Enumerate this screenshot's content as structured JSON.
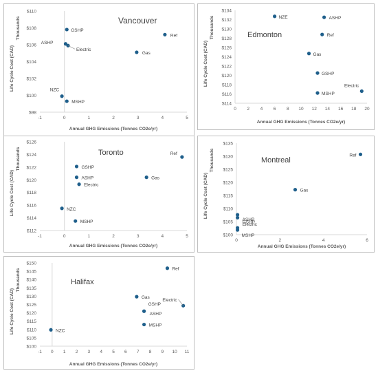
{
  "chart_data": [
    {
      "type": "scatter",
      "title": "Vancouver",
      "xlabel": "Annual GHG Emissions (Tonnes CO2e/yr)",
      "ylabel": "Life Cycle Cost (CAD)",
      "yunit": "Thousands",
      "xlim": [
        -1,
        5
      ],
      "ylim": [
        98,
        110
      ],
      "xticks": [
        -1,
        0,
        1,
        2,
        3,
        4,
        5
      ],
      "yticks": [
        98,
        100,
        102,
        104,
        106,
        108,
        110
      ],
      "xtick_labels": [
        "-1",
        "0",
        "1",
        "2",
        "3",
        "4",
        "5"
      ],
      "ytick_labels": [
        "$98",
        "$100",
        "$102",
        "$104",
        "$106",
        "$108",
        "$110"
      ],
      "grid": false,
      "points": [
        {
          "label": "GSHP",
          "x": 0.1,
          "y": 107.8
        },
        {
          "label": "ASHP",
          "x": 0.05,
          "y": 106.1
        },
        {
          "label": "Electric",
          "x": 0.15,
          "y": 105.9
        },
        {
          "label": "Ref",
          "x": 4.1,
          "y": 107.2
        },
        {
          "label": "Gas",
          "x": 2.95,
          "y": 105.1
        },
        {
          "label": "NZC",
          "x": -0.1,
          "y": 99.9
        },
        {
          "label": "MSHP",
          "x": 0.1,
          "y": 99.3
        }
      ]
    },
    {
      "type": "scatter",
      "title": "Edmonton",
      "xlabel": "Annual GHG Emissions (Tonnes CO2e/yr)",
      "ylabel": "Life Cycle Cost (CAD)",
      "yunit": "Thousands",
      "xlim": [
        0,
        20
      ],
      "ylim": [
        114,
        134
      ],
      "xticks": [
        0,
        2,
        4,
        6,
        8,
        10,
        12,
        14,
        16,
        18,
        20
      ],
      "yticks": [
        114,
        116,
        118,
        120,
        122,
        124,
        126,
        128,
        130,
        132,
        134
      ],
      "xtick_labels": [
        "0",
        "2",
        "4",
        "6",
        "8",
        "10",
        "12",
        "14",
        "16",
        "18",
        "20"
      ],
      "ytick_labels": [
        "$114",
        "$116",
        "$118",
        "$120",
        "$122",
        "$124",
        "$126",
        "$128",
        "$130",
        "$132",
        "$134"
      ],
      "grid": false,
      "points": [
        {
          "label": "NZE",
          "x": 6.0,
          "y": 132.7
        },
        {
          "label": "ASHP",
          "x": 13.5,
          "y": 132.5
        },
        {
          "label": "Ref",
          "x": 13.2,
          "y": 128.8
        },
        {
          "label": "Gas",
          "x": 11.2,
          "y": 124.7
        },
        {
          "label": "GSHP",
          "x": 12.5,
          "y": 120.5
        },
        {
          "label": "MSHP",
          "x": 12.5,
          "y": 116.2
        },
        {
          "label": "Electric",
          "x": 19.2,
          "y": 116.6
        }
      ]
    },
    {
      "type": "scatter",
      "title": "Toronto",
      "xlabel": "Annual GHG Emissions (Tonnes CO2e/yr)",
      "ylabel": "Life Cycle Cost (CAD)",
      "yunit": "Thousands",
      "xlim": [
        -1,
        5
      ],
      "ylim": [
        112,
        126
      ],
      "xticks": [
        -1,
        0,
        1,
        2,
        3,
        4,
        5
      ],
      "yticks": [
        112,
        114,
        116,
        118,
        120,
        122,
        124,
        126
      ],
      "xtick_labels": [
        "-1",
        "0",
        "1",
        "2",
        "3",
        "4",
        "5"
      ],
      "ytick_labels": [
        "$112",
        "$114",
        "$116",
        "$118",
        "$120",
        "$122",
        "$124",
        "$126"
      ],
      "grid": false,
      "points": [
        {
          "label": "Ref",
          "x": 4.8,
          "y": 123.6
        },
        {
          "label": "GSHP",
          "x": 0.5,
          "y": 122.1
        },
        {
          "label": "ASHP",
          "x": 0.5,
          "y": 120.4
        },
        {
          "label": "Gas",
          "x": 3.35,
          "y": 120.4
        },
        {
          "label": "Electric",
          "x": 0.6,
          "y": 119.3
        },
        {
          "label": "NZC",
          "x": -0.1,
          "y": 115.5
        },
        {
          "label": "MSHP",
          "x": 0.45,
          "y": 113.5
        }
      ]
    },
    {
      "type": "scatter",
      "title": "Montreal",
      "xlabel": "Annual GHG Emissions (Tonnes CO2e/yr)",
      "ylabel": "Life Cycle Cost (CAD)",
      "yunit": "Thousands",
      "xlim": [
        0,
        6
      ],
      "ylim": [
        100,
        135
      ],
      "xticks": [
        0,
        2,
        4,
        6
      ],
      "yticks": [
        100,
        105,
        110,
        115,
        120,
        125,
        130,
        135
      ],
      "xtick_labels": [
        "0",
        "2",
        "4",
        "6"
      ],
      "ytick_labels": [
        "$100",
        "$105",
        "$110",
        "$115",
        "$120",
        "$125",
        "$130",
        "$135"
      ],
      "grid": false,
      "points": [
        {
          "label": "Ref",
          "x": 5.7,
          "y": 130.7
        },
        {
          "label": "Gas",
          "x": 2.7,
          "y": 117.2
        },
        {
          "label": "ASHP",
          "x": 0.05,
          "y": 107.6
        },
        {
          "label": "GSHP",
          "x": 0.05,
          "y": 106.5
        },
        {
          "label": "Electric",
          "x": 0.05,
          "y": 102.6
        },
        {
          "label": "MSHP",
          "x": 0.05,
          "y": 101.8
        }
      ]
    },
    {
      "type": "scatter",
      "title": "Halifax",
      "xlabel": "Annual GHG Emissions (Tonnes CO2e/yr)",
      "ylabel": "Life Cycle Cost (CAD)",
      "yunit": "Thousands",
      "xlim": [
        -1,
        11
      ],
      "ylim": [
        100,
        150
      ],
      "xticks": [
        -1,
        0,
        1,
        2,
        3,
        4,
        5,
        6,
        7,
        8,
        9,
        10,
        11
      ],
      "yticks": [
        100,
        105,
        110,
        115,
        120,
        125,
        130,
        135,
        140,
        145,
        150
      ],
      "xtick_labels": [
        "-1",
        "0",
        "1",
        "2",
        "3",
        "4",
        "5",
        "6",
        "7",
        "8",
        "9",
        "10",
        "11"
      ],
      "ytick_labels": [
        "$100",
        "$105",
        "$110",
        "$115",
        "$120",
        "$125",
        "$130",
        "$135",
        "$140",
        "$145",
        "$150"
      ],
      "grid": false,
      "points": [
        {
          "label": "Ref",
          "x": 9.4,
          "y": 146.8
        },
        {
          "label": "Gas",
          "x": 6.9,
          "y": 129.7
        },
        {
          "label": "GSHP",
          "x": 7.5,
          "y": 121.0
        },
        {
          "label": "ASHP",
          "x": 7.5,
          "y": 121.0
        },
        {
          "label": "Electric",
          "x": 10.7,
          "y": 124.3
        },
        {
          "label": "MSHP",
          "x": 7.5,
          "y": 113.0
        },
        {
          "label": "NZC",
          "x": -0.1,
          "y": 109.8
        }
      ]
    }
  ],
  "colors": {
    "point": "#1f5f8b",
    "axis": "#d9d9d9",
    "tick_text": "#595959",
    "title_text": "#404040",
    "label_text": "#404040",
    "leader": "#7f7f7f"
  }
}
